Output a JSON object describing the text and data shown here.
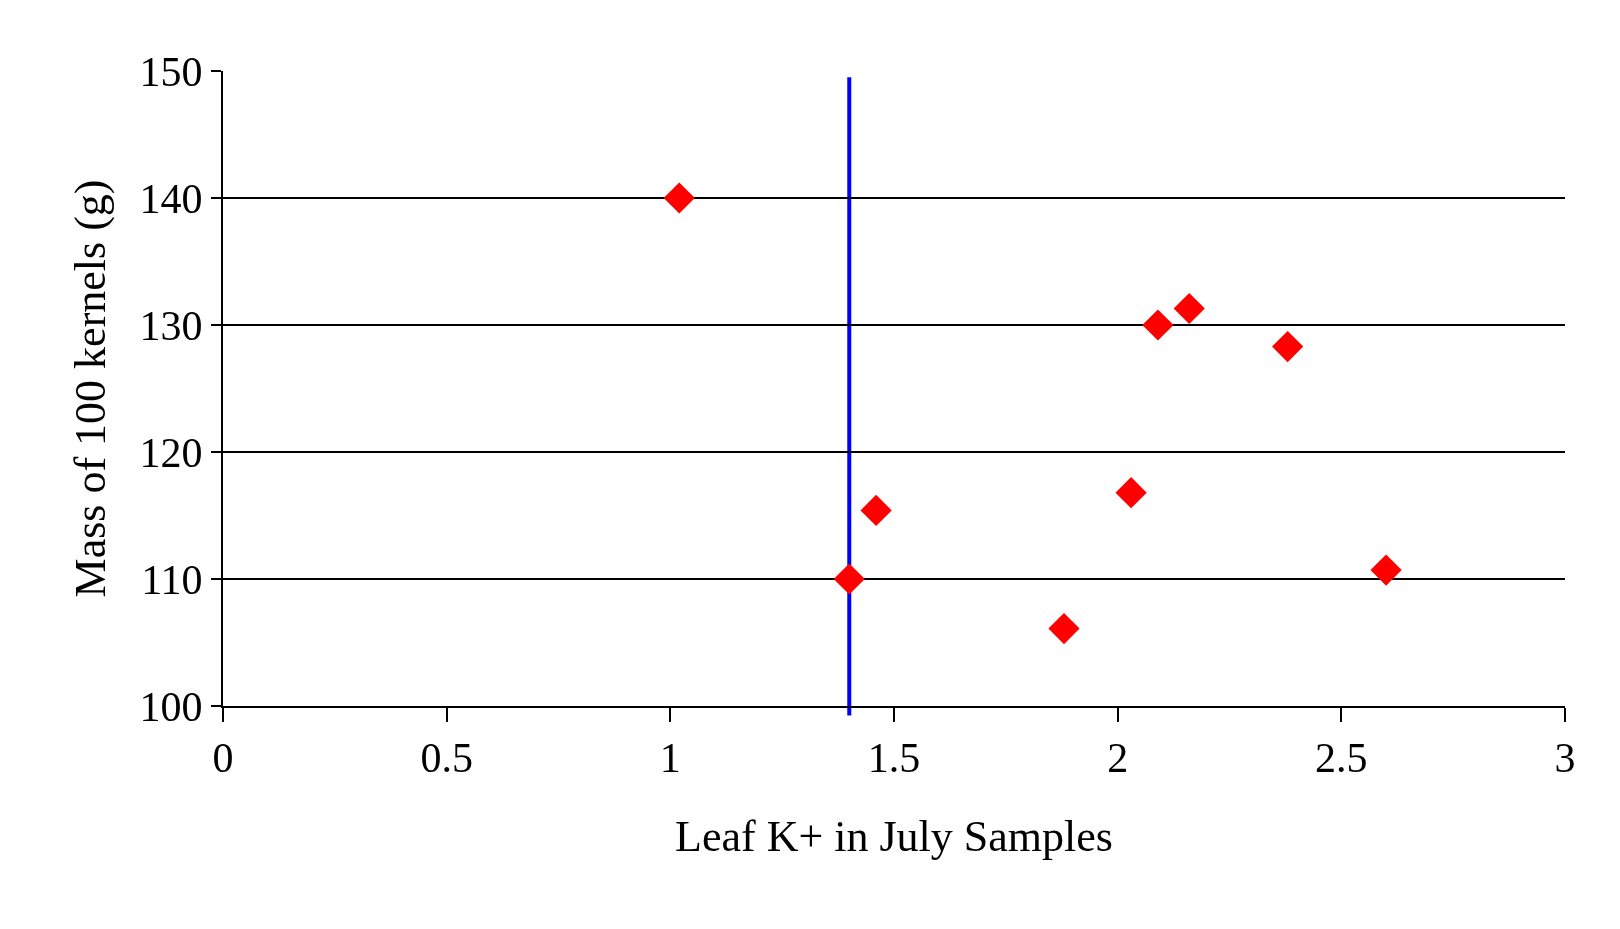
{
  "chart_data": {
    "type": "scatter",
    "xlabel": "Leaf K+ in July Samples",
    "ylabel": "Mass of 100 kernels (g)",
    "x": [
      1.02,
      1.4,
      1.46,
      1.88,
      2.03,
      2.09,
      2.16,
      2.38,
      2.6
    ],
    "series": [
      {
        "color": "#ff0000",
        "values": [
          140,
          110,
          115.4,
          106.1,
          116.8,
          130,
          131.3,
          128.3,
          110.7
        ]
      }
    ],
    "marker": "diamond",
    "grid": "y",
    "legend": false,
    "xlim": [
      0,
      3
    ],
    "xticks": [
      0,
      0.5,
      1,
      1.5,
      2,
      2.5,
      3
    ],
    "ylim": [
      100,
      150
    ],
    "yticks": [
      100,
      110,
      120,
      130,
      140,
      150
    ],
    "ref_lines": [
      {
        "axis": "x",
        "value": 1.4,
        "color": "#0000ff"
      }
    ]
  }
}
